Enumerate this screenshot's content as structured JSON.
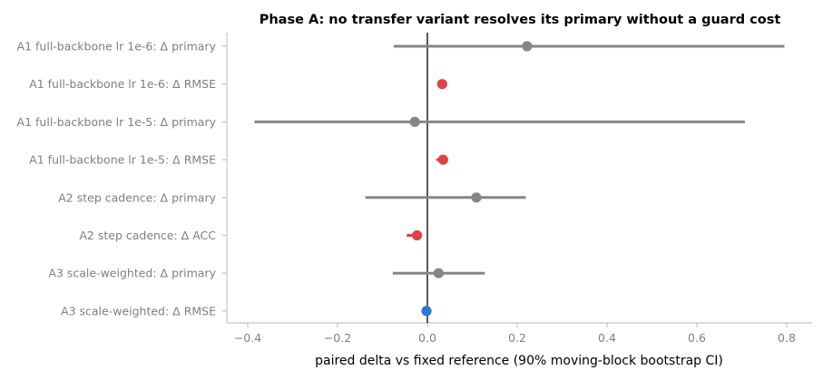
{
  "chart_data": {
    "type": "scatter",
    "title": "Phase A: no transfer variant resolves its primary without a guard cost",
    "xlabel": "paired delta vs fixed reference (90% moving-block bootstrap CI)",
    "ylabel": "",
    "xlim": [
      -0.45,
      0.86
    ],
    "xticks": [
      -0.4,
      -0.2,
      0.0,
      0.2,
      0.4,
      0.6,
      0.8
    ],
    "xtick_labels": [
      "−0.4",
      "−0.2",
      "0.0",
      "0.2",
      "0.4",
      "0.6",
      "0.8"
    ],
    "reference_line_x": 0.0,
    "grid": false,
    "rows": [
      {
        "label": "A1 full-backbone lr 1e-6: Δ primary",
        "value": 0.222,
        "ci": [
          -0.075,
          0.795
        ],
        "color": "#878781"
      },
      {
        "label": "A1 full-backbone lr 1e-6: Δ RMSE",
        "value": 0.033,
        "ci": [
          0.026,
          0.04
        ],
        "color": "#df4246"
      },
      {
        "label": "A1 full-backbone lr 1e-5: Δ primary",
        "value": -0.028,
        "ci": [
          -0.385,
          0.707
        ],
        "color": "#878781"
      },
      {
        "label": "A1 full-backbone lr 1e-5: Δ RMSE",
        "value": 0.035,
        "ci": [
          0.02,
          0.042
        ],
        "color": "#df4246"
      },
      {
        "label": "A2 step cadence: Δ primary",
        "value": 0.109,
        "ci": [
          -0.138,
          0.219
        ],
        "color": "#878781"
      },
      {
        "label": "A2 step cadence: Δ ACC",
        "value": -0.023,
        "ci": [
          -0.046,
          -0.018
        ],
        "color": "#df4246"
      },
      {
        "label": "A3 scale-weighted: Δ primary",
        "value": 0.025,
        "ci": [
          -0.077,
          0.128
        ],
        "color": "#878781"
      },
      {
        "label": "A3 scale-weighted: Δ RMSE",
        "value": -0.002,
        "ci": [
          -0.004,
          0.0
        ],
        "color": "#2b78d8"
      }
    ]
  }
}
